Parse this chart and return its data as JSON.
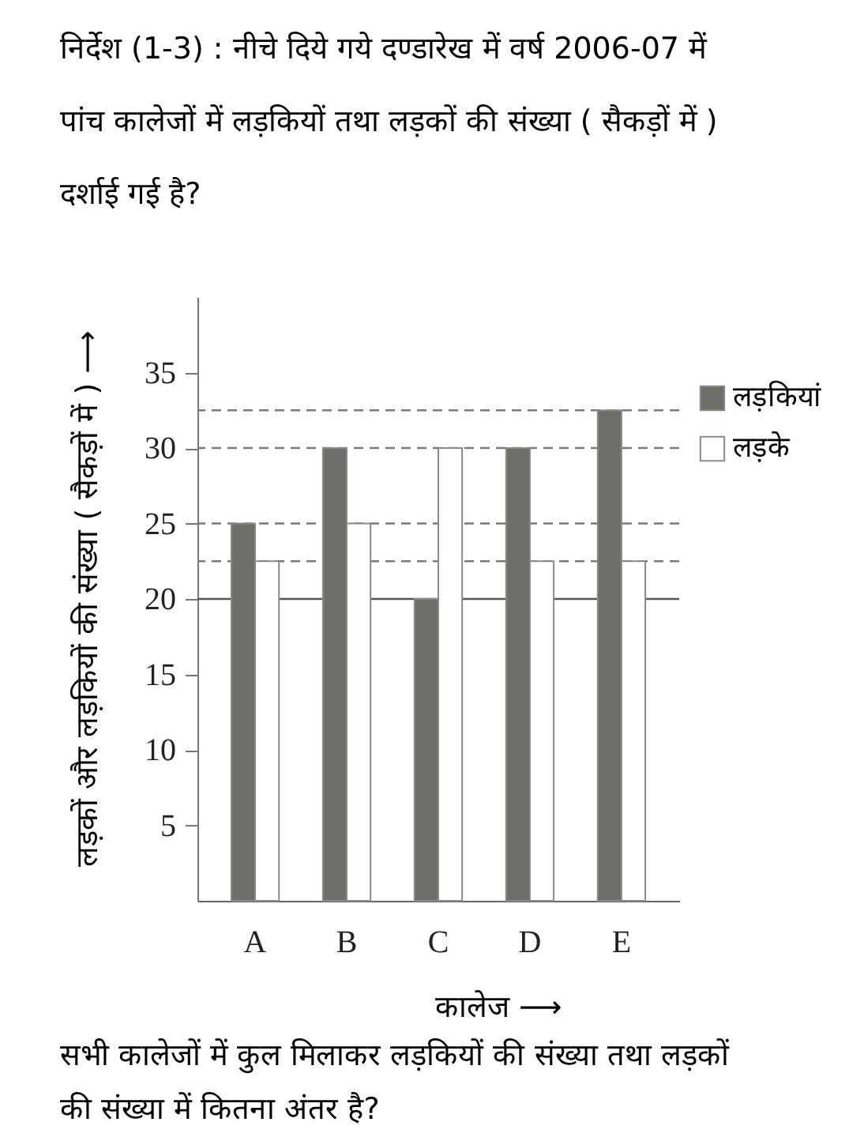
{
  "chart_data": {
    "type": "bar",
    "title": "निर्देश (1-3) : नीचे दिये गये दण्डारेख में वर्ष 2006-07 में पांच कालेजों में लड़कियों तथा लड़कों की संख्या ( सैकड़ों में ) दर्शाई गई है?",
    "xlabel": "कालेज ⟶",
    "ylabel": "लड़कों और लड़कियों की संख्या ( सैकड़ों में ) ⟶",
    "categories": [
      "A",
      "B",
      "C",
      "D",
      "E"
    ],
    "series": [
      {
        "name": "लड़कियां",
        "color": "#6f6f69",
        "values": [
          25,
          30,
          20,
          30,
          32.5
        ]
      },
      {
        "name": "लड़के",
        "color": "#ffffff",
        "values": [
          22.5,
          25,
          30,
          22.5,
          22.5
        ]
      }
    ],
    "ylim": [
      0,
      40
    ],
    "yticks": [
      5,
      10,
      15,
      20,
      25,
      30,
      35
    ],
    "grid": false,
    "legend": "right",
    "ref_lines": [
      {
        "axis": "y",
        "value": 32.5,
        "line_style": "dashed",
        "color": "#7a7a7a"
      },
      {
        "axis": "y",
        "value": 30,
        "line_style": "dashed",
        "color": "#7a7a7a"
      },
      {
        "axis": "y",
        "value": 25,
        "line_style": "dashed",
        "color": "#7a7a7a"
      },
      {
        "axis": "y",
        "value": 22.5,
        "line_style": "dashed",
        "color": "#7a7a7a"
      },
      {
        "axis": "y",
        "value": 20,
        "line_style": "solid",
        "color": "#555555"
      }
    ],
    "annotations": [
      "सभी कालेजों में कुल मिलाकर लड़कियों की संख्या तथा लड़कों की संख्या में कितना अंतर है?"
    ]
  }
}
